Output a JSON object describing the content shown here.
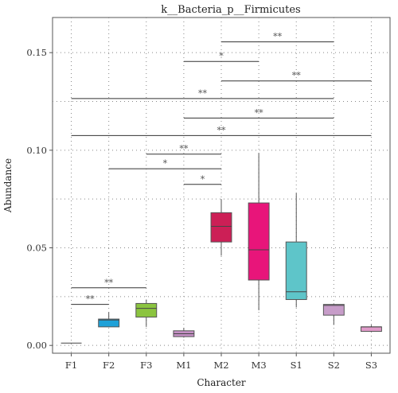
{
  "chart_data": {
    "type": "box",
    "title": "k__Bacteria_p__Firmicutes",
    "xlabel": "Character",
    "ylabel": "Abundance",
    "ylim": [
      -0.004,
      0.168
    ],
    "yticks": [
      0.0,
      0.05,
      0.1,
      0.15
    ],
    "ytick_labels": [
      "0.00",
      "0.05",
      "0.10",
      "0.15"
    ],
    "grid": true,
    "categories": [
      "F1",
      "F2",
      "F3",
      "M1",
      "M2",
      "M3",
      "S1",
      "S2",
      "S3"
    ],
    "boxes": [
      {
        "category": "F1",
        "color": "#e8e8e8",
        "min": 0.0012,
        "q1": 0.0012,
        "median": 0.0012,
        "q3": 0.0012,
        "max": 0.0012
      },
      {
        "category": "F2",
        "color": "#1fa1d8",
        "min": 0.0095,
        "q1": 0.0095,
        "median": 0.013,
        "q3": 0.0135,
        "max": 0.017
      },
      {
        "category": "F3",
        "color": "#8bc43f",
        "min": 0.0095,
        "q1": 0.0145,
        "median": 0.019,
        "q3": 0.0215,
        "max": 0.0235
      },
      {
        "category": "M1",
        "color": "#c48fc4",
        "min": 0.004,
        "q1": 0.0045,
        "median": 0.006,
        "q3": 0.0075,
        "max": 0.009
      },
      {
        "category": "M2",
        "color": "#cc1f56",
        "min": 0.046,
        "q1": 0.053,
        "median": 0.061,
        "q3": 0.068,
        "max": 0.075
      },
      {
        "category": "M3",
        "color": "#e8157a",
        "min": 0.018,
        "q1": 0.0335,
        "median": 0.049,
        "q3": 0.073,
        "max": 0.0985
      },
      {
        "category": "S1",
        "color": "#5ec5c9",
        "min": 0.0195,
        "q1": 0.0235,
        "median": 0.0275,
        "q3": 0.053,
        "max": 0.078
      },
      {
        "category": "S2",
        "color": "#c79dc9",
        "min": 0.0105,
        "q1": 0.0155,
        "median": 0.0205,
        "q3": 0.021,
        "max": 0.0215
      },
      {
        "category": "S3",
        "color": "#e09ac9",
        "min": 0.0072,
        "q1": 0.0072,
        "median": 0.0095,
        "q3": 0.0095,
        "max": 0.0105
      }
    ],
    "significance": [
      {
        "from": "M2",
        "to": "S2",
        "y": 0.1555,
        "label": "**"
      },
      {
        "from": "M1",
        "to": "M3",
        "y": 0.1455,
        "label": "*"
      },
      {
        "from": "M2",
        "to": "S3",
        "y": 0.1355,
        "label": "**"
      },
      {
        "from": "F1",
        "to": "S2",
        "y": 0.1265,
        "label": "**"
      },
      {
        "from": "M1",
        "to": "S2",
        "y": 0.1165,
        "label": "**"
      },
      {
        "from": "F1",
        "to": "S3",
        "y": 0.1075,
        "label": "**"
      },
      {
        "from": "F3",
        "to": "M2",
        "y": 0.098,
        "label": "**"
      },
      {
        "from": "F2",
        "to": "M2",
        "y": 0.0905,
        "label": "*"
      },
      {
        "from": "M1",
        "to": "M2",
        "y": 0.0825,
        "label": "*"
      },
      {
        "from": "F1",
        "to": "F3",
        "y": 0.0295,
        "label": "**"
      },
      {
        "from": "F1",
        "to": "F2",
        "y": 0.021,
        "label": "**"
      }
    ]
  }
}
